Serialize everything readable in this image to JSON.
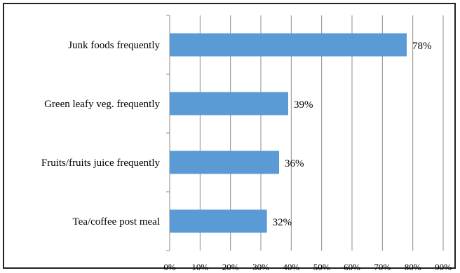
{
  "chart_data": {
    "type": "bar",
    "orientation": "horizontal",
    "categories": [
      "Junk foods frequently",
      "Green leafy veg. frequently",
      "Fruits/fruits juice frequently",
      "Tea/coffee post meal"
    ],
    "values": [
      78,
      39,
      36,
      32
    ],
    "value_labels": [
      "78%",
      "39%",
      "36%",
      "32%"
    ],
    "x_ticks": [
      "0%",
      "10%",
      "20%",
      "30%",
      "40%",
      "50%",
      "60%",
      "70%",
      "80%",
      "90%"
    ],
    "xlim": [
      0,
      90
    ],
    "grid": true,
    "legend": "none",
    "bar_color": "#5b9bd5",
    "title": "",
    "xlabel": "",
    "ylabel": ""
  }
}
